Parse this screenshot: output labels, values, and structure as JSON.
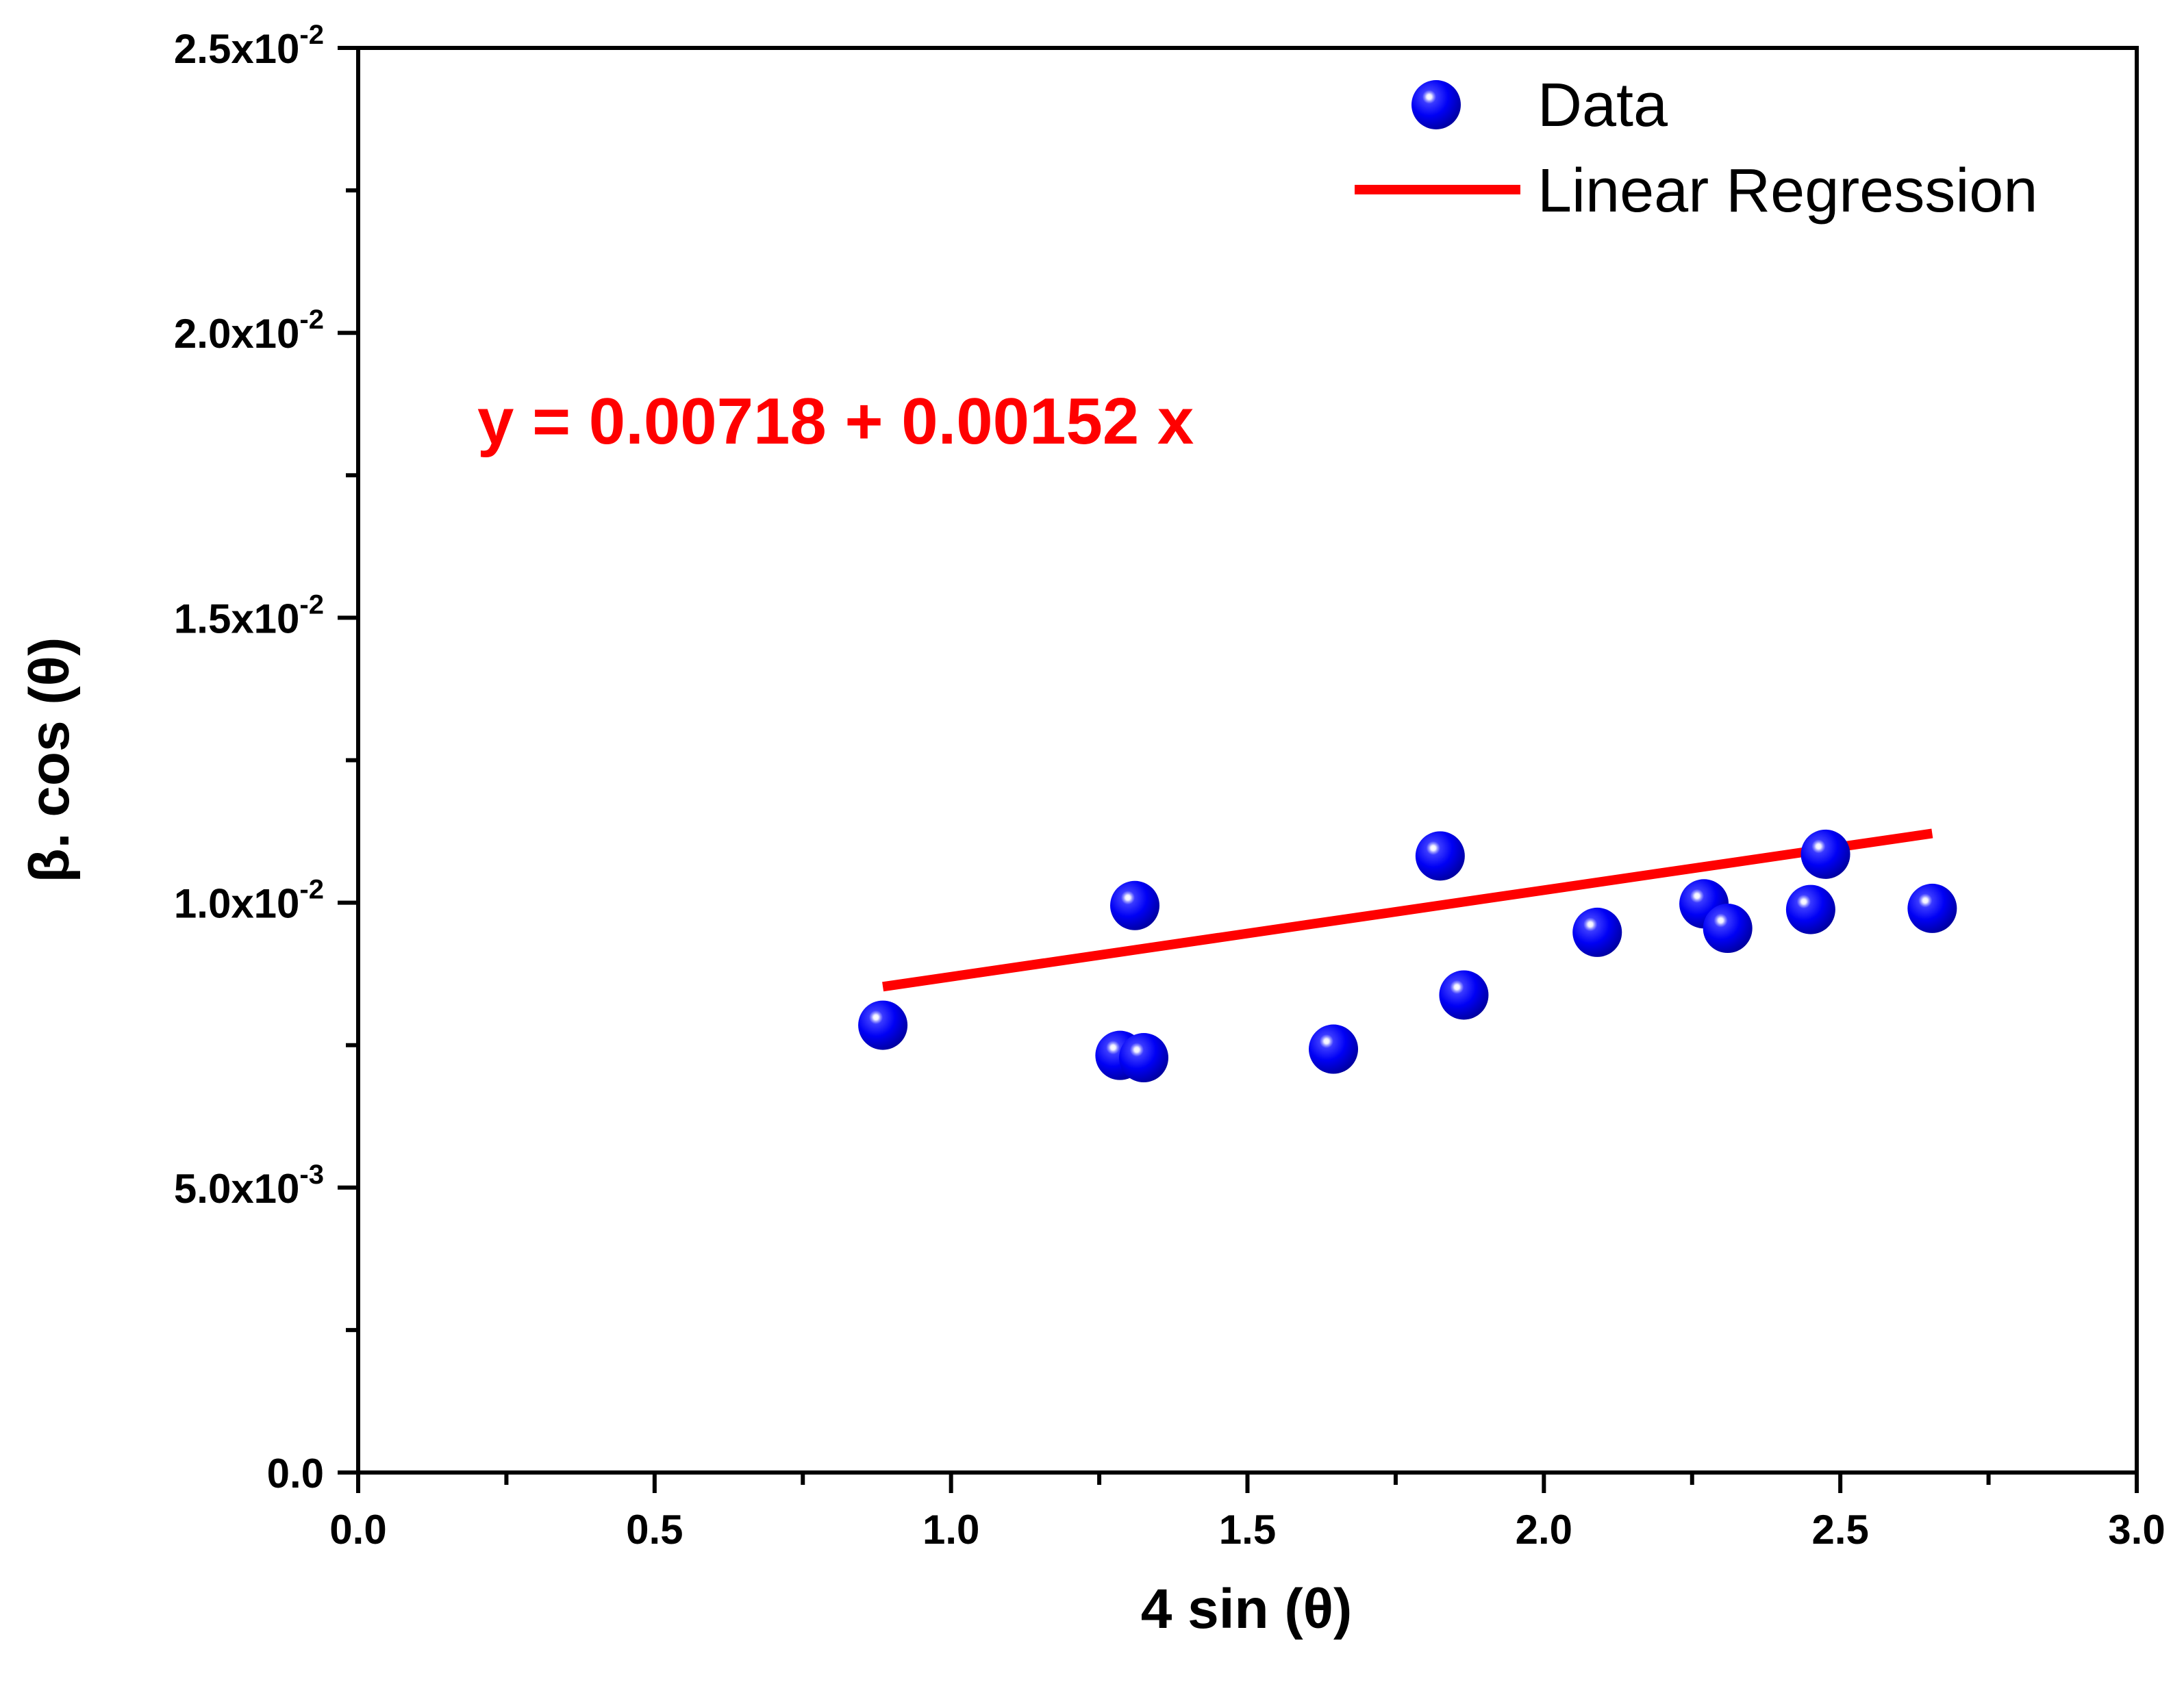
{
  "chart_data": {
    "type": "scatter",
    "xlabel": "4 sin (θ)",
    "ylabel": "β. cos (θ)",
    "xlim": [
      0,
      3
    ],
    "ylim": [
      0,
      0.025
    ],
    "x_ticks": [
      {
        "value": 0,
        "label": "0.0"
      },
      {
        "value": 0.5,
        "label": "0.5"
      },
      {
        "value": 1,
        "label": "1.0"
      },
      {
        "value": 1.5,
        "label": "1.5"
      },
      {
        "value": 2,
        "label": "2.0"
      },
      {
        "value": 2.5,
        "label": "2.5"
      },
      {
        "value": 3,
        "label": "3.0"
      }
    ],
    "x_minor_ticks": [
      0.25,
      0.75,
      1.25,
      1.75,
      2.25,
      2.75
    ],
    "y_ticks": [
      {
        "value": 0,
        "mantissa": "0.0",
        "exponent": ""
      },
      {
        "value": 0.005,
        "mantissa": "5.0x10",
        "exponent": "-3"
      },
      {
        "value": 0.01,
        "mantissa": "1.0x10",
        "exponent": "-2"
      },
      {
        "value": 0.015,
        "mantissa": "1.5x10",
        "exponent": "-2"
      },
      {
        "value": 0.02,
        "mantissa": "2.0x10",
        "exponent": "-2"
      },
      {
        "value": 0.025,
        "mantissa": "2.5x10",
        "exponent": "-2"
      }
    ],
    "y_minor_ticks": [
      0.0025,
      0.0075,
      0.0125,
      0.0175,
      0.0225
    ],
    "series": [
      {
        "name": "Data",
        "kind": "scatter",
        "color": "#0000ff",
        "points": [
          {
            "x": 0.885,
            "y": 0.00785
          },
          {
            "x": 1.285,
            "y": 0.00732
          },
          {
            "x": 1.31,
            "y": 0.00995
          },
          {
            "x": 1.325,
            "y": 0.00728
          },
          {
            "x": 1.645,
            "y": 0.00743
          },
          {
            "x": 1.825,
            "y": 0.01082
          },
          {
            "x": 1.865,
            "y": 0.00838
          },
          {
            "x": 2.09,
            "y": 0.00948
          },
          {
            "x": 2.27,
            "y": 0.00998
          },
          {
            "x": 2.31,
            "y": 0.00955
          },
          {
            "x": 2.45,
            "y": 0.00988
          },
          {
            "x": 2.475,
            "y": 0.01085
          },
          {
            "x": 2.655,
            "y": 0.0099
          }
        ]
      },
      {
        "name": "Linear Regression",
        "kind": "line",
        "color": "#ff0000",
        "intercept": 0.00718,
        "slope": 0.00152,
        "x_range": [
          0.885,
          2.655
        ]
      }
    ],
    "annotations": [
      {
        "text": "y = 0.00718 + 0.00152 x",
        "color": "#ff0000"
      }
    ],
    "legend": {
      "position": "top-right",
      "entries": [
        {
          "label": "Data",
          "marker": "sphere",
          "color": "#0000ff"
        },
        {
          "label": "Linear Regression",
          "marker": "line",
          "color": "#ff0000"
        }
      ]
    },
    "grid": false
  }
}
